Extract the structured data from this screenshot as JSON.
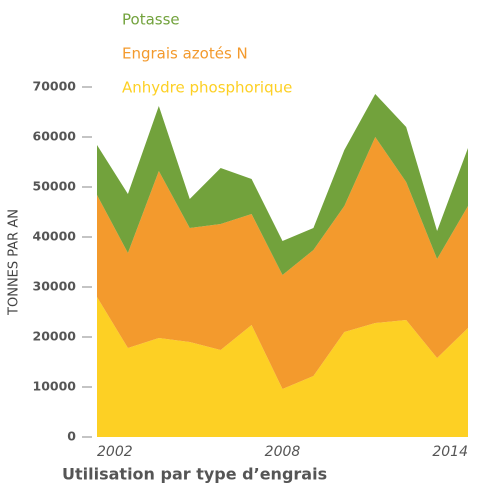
{
  "chart_data": {
    "type": "stacked_area",
    "title": "Utilisation par type d’engrais",
    "y_label": "TONNES PAR AN",
    "x": [
      2002,
      2003,
      2004,
      2005,
      2006,
      2007,
      2008,
      2009,
      2010,
      2011,
      2012,
      2013,
      2014
    ],
    "xlim": [
      2002,
      2014
    ],
    "xticks": [
      2002,
      2008,
      2014
    ],
    "ylim": [
      0,
      70000
    ],
    "yticks": [
      0,
      10000,
      20000,
      30000,
      40000,
      50000,
      60000,
      70000
    ],
    "series": [
      {
        "name": "Anhydre phosphorique",
        "color": "#fdd024",
        "values": [
          28000,
          17800,
          19800,
          19000,
          17400,
          22400,
          9600,
          12200,
          21000,
          22800,
          23400,
          15800,
          21800
        ]
      },
      {
        "name": "Engrais azotés N",
        "color": "#f39a2d",
        "values": [
          20400,
          19000,
          33400,
          22800,
          25200,
          22200,
          22800,
          25200,
          25200,
          37200,
          27600,
          19800,
          24400
        ]
      },
      {
        "name": "Potasse",
        "color": "#72a23c",
        "values": [
          10000,
          11800,
          13000,
          5800,
          11200,
          7000,
          6800,
          4400,
          11200,
          8600,
          11000,
          5600,
          11600
        ]
      }
    ]
  }
}
